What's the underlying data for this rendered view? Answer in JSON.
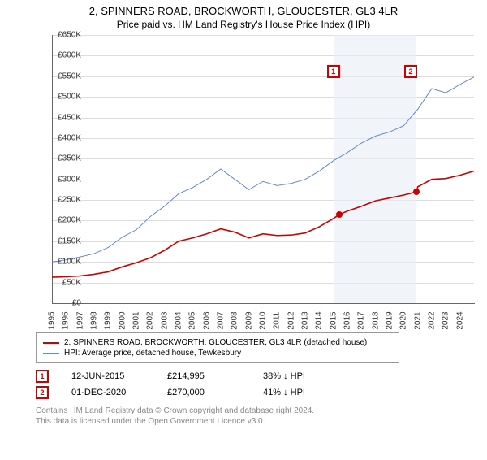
{
  "title": "2, SPINNERS ROAD, BROCKWORTH, GLOUCESTER, GL3 4LR",
  "subtitle": "Price paid vs. HM Land Registry's House Price Index (HPI)",
  "chart": {
    "type": "line",
    "ylim": [
      0,
      650000
    ],
    "ytick_step": 50000,
    "ytick_labels": [
      "£0",
      "£50K",
      "£100K",
      "£150K",
      "£200K",
      "£250K",
      "£300K",
      "£350K",
      "£400K",
      "£450K",
      "£500K",
      "£550K",
      "£600K",
      "£650K"
    ],
    "xlim": [
      1995,
      2025
    ],
    "xtick_step": 1,
    "xtick_labels": [
      "1995",
      "1996",
      "1997",
      "1998",
      "1999",
      "2000",
      "2001",
      "2002",
      "2003",
      "2004",
      "2005",
      "2006",
      "2007",
      "2008",
      "2009",
      "2010",
      "2011",
      "2012",
      "2013",
      "2014",
      "2015",
      "2016",
      "2017",
      "2018",
      "2019",
      "2020",
      "2021",
      "2022",
      "2023",
      "2024"
    ],
    "background_color": "#ffffff",
    "grid_color": "#dddddd",
    "band_color": "#e8eef5",
    "bands": [
      {
        "start": 2015.0,
        "end": 2020.92
      }
    ],
    "series": [
      {
        "name": "property",
        "color": "#cc0000",
        "width": 1.6,
        "points": [
          [
            1995,
            63000
          ],
          [
            1996,
            64000
          ],
          [
            1997,
            66000
          ],
          [
            1998,
            70000
          ],
          [
            1999,
            76000
          ],
          [
            2000,
            88000
          ],
          [
            2001,
            98000
          ],
          [
            2002,
            110000
          ],
          [
            2003,
            128000
          ],
          [
            2004,
            150000
          ],
          [
            2005,
            158000
          ],
          [
            2006,
            168000
          ],
          [
            2007,
            180000
          ],
          [
            2008,
            172000
          ],
          [
            2009,
            158000
          ],
          [
            2010,
            168000
          ],
          [
            2011,
            164000
          ],
          [
            2012,
            165000
          ],
          [
            2013,
            170000
          ],
          [
            2014,
            185000
          ],
          [
            2015,
            205000
          ],
          [
            2015.45,
            214995
          ],
          [
            2016,
            223000
          ],
          [
            2017,
            235000
          ],
          [
            2018,
            248000
          ],
          [
            2019,
            255000
          ],
          [
            2020,
            262000
          ],
          [
            2020.92,
            270000
          ],
          [
            2021,
            282000
          ],
          [
            2022,
            300000
          ],
          [
            2023,
            302000
          ],
          [
            2024,
            310000
          ],
          [
            2025,
            320000
          ]
        ]
      },
      {
        "name": "hpi",
        "color": "#6688cc",
        "width": 1.0,
        "points": [
          [
            1995,
            100000
          ],
          [
            1996,
            105000
          ],
          [
            1997,
            112000
          ],
          [
            1998,
            120000
          ],
          [
            1999,
            135000
          ],
          [
            2000,
            160000
          ],
          [
            2001,
            178000
          ],
          [
            2002,
            210000
          ],
          [
            2003,
            235000
          ],
          [
            2004,
            265000
          ],
          [
            2005,
            280000
          ],
          [
            2006,
            300000
          ],
          [
            2007,
            325000
          ],
          [
            2008,
            300000
          ],
          [
            2009,
            275000
          ],
          [
            2010,
            295000
          ],
          [
            2011,
            285000
          ],
          [
            2012,
            290000
          ],
          [
            2013,
            300000
          ],
          [
            2014,
            320000
          ],
          [
            2015,
            345000
          ],
          [
            2016,
            365000
          ],
          [
            2017,
            388000
          ],
          [
            2018,
            405000
          ],
          [
            2019,
            415000
          ],
          [
            2020,
            430000
          ],
          [
            2021,
            470000
          ],
          [
            2022,
            520000
          ],
          [
            2023,
            510000
          ],
          [
            2024,
            530000
          ],
          [
            2025,
            548000
          ]
        ]
      }
    ],
    "markers": [
      {
        "n": "1",
        "x": 2015.45,
        "y": 214995,
        "badge_x": 2015.0,
        "badge_y": 578000
      },
      {
        "n": "2",
        "x": 2020.92,
        "y": 270000,
        "badge_x": 2020.5,
        "badge_y": 578000
      }
    ]
  },
  "legend": {
    "items": [
      {
        "color": "#cc0000",
        "label": "2, SPINNERS ROAD, BROCKWORTH, GLOUCESTER, GL3 4LR (detached house)"
      },
      {
        "color": "#6688cc",
        "label": "HPI: Average price, detached house, Tewkesbury"
      }
    ]
  },
  "data_rows": [
    {
      "n": "1",
      "date": "12-JUN-2015",
      "price": "£214,995",
      "delta": "38% ↓ HPI"
    },
    {
      "n": "2",
      "date": "01-DEC-2020",
      "price": "£270,000",
      "delta": "41% ↓ HPI"
    }
  ],
  "footer": {
    "line1": "Contains HM Land Registry data © Crown copyright and database right 2024.",
    "line2": "This data is licensed under the Open Government Licence v3.0."
  }
}
